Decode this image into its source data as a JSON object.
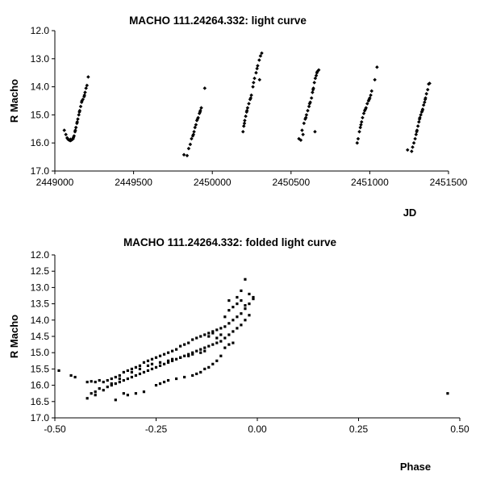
{
  "chart_data": [
    {
      "type": "scatter",
      "title": "MACHO 111.24264.332: light curve",
      "xlabel": "JD",
      "ylabel": "R Macho",
      "xlim": [
        2449000,
        2451500
      ],
      "ylim": [
        12.0,
        17.0
      ],
      "y_inverted": true,
      "grid": false,
      "x_ticks": [
        "2449000",
        "2449500",
        "2450000",
        "2450500",
        "2451000",
        "2451500"
      ],
      "y_ticks": [
        "12.0",
        "13.0",
        "14.0",
        "15.0",
        "16.0",
        "17.0"
      ],
      "marker_color": "#000000",
      "points": [
        [
          2449060,
          15.55
        ],
        [
          2449070,
          15.7
        ],
        [
          2449078,
          15.82
        ],
        [
          2449085,
          15.88
        ],
        [
          2449092,
          15.9
        ],
        [
          2449098,
          15.92
        ],
        [
          2449104,
          15.9
        ],
        [
          2449110,
          15.88
        ],
        [
          2449116,
          15.85
        ],
        [
          2449122,
          15.75
        ],
        [
          2449128,
          15.6
        ],
        [
          2449134,
          15.45
        ],
        [
          2449140,
          15.3
        ],
        [
          2449146,
          15.15
        ],
        [
          2449152,
          15.0
        ],
        [
          2449158,
          14.85
        ],
        [
          2449164,
          14.7
        ],
        [
          2449170,
          14.55
        ],
        [
          2449178,
          14.45
        ],
        [
          2449186,
          14.35
        ],
        [
          2449192,
          14.2
        ],
        [
          2449198,
          14.05
        ],
        [
          2449204,
          13.95
        ],
        [
          2449212,
          13.65
        ],
        [
          2449082,
          15.85
        ],
        [
          2449100,
          15.87
        ],
        [
          2449118,
          15.8
        ],
        [
          2449130,
          15.55
        ],
        [
          2449142,
          15.25
        ],
        [
          2449156,
          14.9
        ],
        [
          2449172,
          14.5
        ],
        [
          2449188,
          14.3
        ],
        [
          2449820,
          16.42
        ],
        [
          2449840,
          16.45
        ],
        [
          2449850,
          16.2
        ],
        [
          2449860,
          16.05
        ],
        [
          2449868,
          15.85
        ],
        [
          2449876,
          15.75
        ],
        [
          2449884,
          15.6
        ],
        [
          2449890,
          15.45
        ],
        [
          2449896,
          15.35
        ],
        [
          2449902,
          15.2
        ],
        [
          2449910,
          15.1
        ],
        [
          2449918,
          14.95
        ],
        [
          2449924,
          14.85
        ],
        [
          2449930,
          14.75
        ],
        [
          2449952,
          14.05
        ],
        [
          2449880,
          15.7
        ],
        [
          2449906,
          15.15
        ],
        [
          2449922,
          14.9
        ],
        [
          2450195,
          15.6
        ],
        [
          2450200,
          15.4
        ],
        [
          2450206,
          15.2
        ],
        [
          2450212,
          15.05
        ],
        [
          2450218,
          14.9
        ],
        [
          2450224,
          14.75
        ],
        [
          2450232,
          14.6
        ],
        [
          2450240,
          14.45
        ],
        [
          2450248,
          14.3
        ],
        [
          2450258,
          14.0
        ],
        [
          2450268,
          13.7
        ],
        [
          2450278,
          13.5
        ],
        [
          2450288,
          13.25
        ],
        [
          2450298,
          13.05
        ],
        [
          2450306,
          12.9
        ],
        [
          2450314,
          12.8
        ],
        [
          2450300,
          13.75
        ],
        [
          2450204,
          15.3
        ],
        [
          2450220,
          14.85
        ],
        [
          2450244,
          14.4
        ],
        [
          2450262,
          13.85
        ],
        [
          2450284,
          13.35
        ],
        [
          2450550,
          15.85
        ],
        [
          2450562,
          15.9
        ],
        [
          2450570,
          15.55
        ],
        [
          2450576,
          15.7
        ],
        [
          2450582,
          15.3
        ],
        [
          2450590,
          15.15
        ],
        [
          2450598,
          15.0
        ],
        [
          2450606,
          14.85
        ],
        [
          2450614,
          14.7
        ],
        [
          2450622,
          14.55
        ],
        [
          2450630,
          14.4
        ],
        [
          2450636,
          14.2
        ],
        [
          2450642,
          14.05
        ],
        [
          2450648,
          13.85
        ],
        [
          2450654,
          13.7
        ],
        [
          2450660,
          13.6
        ],
        [
          2450668,
          13.45
        ],
        [
          2450676,
          13.4
        ],
        [
          2450652,
          15.6
        ],
        [
          2450594,
          15.1
        ],
        [
          2450618,
          14.6
        ],
        [
          2450640,
          14.1
        ],
        [
          2450664,
          13.5
        ],
        [
          2450920,
          16.0
        ],
        [
          2450926,
          15.85
        ],
        [
          2450934,
          15.6
        ],
        [
          2450940,
          15.45
        ],
        [
          2450948,
          15.25
        ],
        [
          2450954,
          15.1
        ],
        [
          2450962,
          14.95
        ],
        [
          2450968,
          14.85
        ],
        [
          2450976,
          14.75
        ],
        [
          2450984,
          14.6
        ],
        [
          2450992,
          14.5
        ],
        [
          2451000,
          14.4
        ],
        [
          2451006,
          14.3
        ],
        [
          2451012,
          14.15
        ],
        [
          2451032,
          13.75
        ],
        [
          2451046,
          13.3
        ],
        [
          2450944,
          15.35
        ],
        [
          2450972,
          14.8
        ],
        [
          2450996,
          14.45
        ],
        [
          2451240,
          16.25
        ],
        [
          2451266,
          16.3
        ],
        [
          2451272,
          16.15
        ],
        [
          2451280,
          16.0
        ],
        [
          2451288,
          15.85
        ],
        [
          2451294,
          15.7
        ],
        [
          2451300,
          15.55
        ],
        [
          2451306,
          15.4
        ],
        [
          2451312,
          15.25
        ],
        [
          2451318,
          15.1
        ],
        [
          2451324,
          15.0
        ],
        [
          2451330,
          14.9
        ],
        [
          2451336,
          14.8
        ],
        [
          2451342,
          14.65
        ],
        [
          2451348,
          14.55
        ],
        [
          2451354,
          14.4
        ],
        [
          2451360,
          14.25
        ],
        [
          2451368,
          14.1
        ],
        [
          2451374,
          13.9
        ],
        [
          2451380,
          13.88
        ],
        [
          2451298,
          15.6
        ],
        [
          2451316,
          15.15
        ],
        [
          2451334,
          14.85
        ],
        [
          2451352,
          14.45
        ]
      ]
    },
    {
      "type": "scatter",
      "title": "MACHO 111.24264.332: folded light curve",
      "xlabel": "Phase",
      "ylabel": "R Macho",
      "xlim": [
        -0.5,
        0.5
      ],
      "ylim": [
        12.0,
        17.0
      ],
      "y_inverted": true,
      "grid": false,
      "x_ticks": [
        "-0.50",
        "-0.25",
        "0.00",
        "0.25",
        "0.50"
      ],
      "y_ticks": [
        "12.0",
        "12.5",
        "13.0",
        "13.5",
        "14.0",
        "14.5",
        "15.0",
        "15.5",
        "16.0",
        "16.5",
        "17.0"
      ],
      "marker_color": "#000000",
      "points": [
        [
          -0.49,
          15.55
        ],
        [
          -0.46,
          15.7
        ],
        [
          -0.45,
          15.75
        ],
        [
          -0.42,
          16.4
        ],
        [
          -0.4,
          16.3
        ],
        [
          -0.35,
          16.45
        ],
        [
          0.47,
          16.25
        ],
        [
          -0.42,
          15.9
        ],
        [
          -0.41,
          15.88
        ],
        [
          -0.4,
          15.9
        ],
        [
          -0.39,
          15.85
        ],
        [
          -0.38,
          15.9
        ],
        [
          -0.37,
          15.85
        ],
        [
          -0.36,
          15.8
        ],
        [
          -0.35,
          15.75
        ],
        [
          -0.34,
          15.7
        ],
        [
          -0.33,
          15.6
        ],
        [
          -0.32,
          15.55
        ],
        [
          -0.31,
          15.5
        ],
        [
          -0.3,
          15.45
        ],
        [
          -0.29,
          15.4
        ],
        [
          -0.28,
          15.3
        ],
        [
          -0.27,
          15.25
        ],
        [
          -0.26,
          15.2
        ],
        [
          -0.25,
          15.15
        ],
        [
          -0.24,
          15.1
        ],
        [
          -0.23,
          15.05
        ],
        [
          -0.22,
          15.0
        ],
        [
          -0.21,
          14.95
        ],
        [
          -0.2,
          14.9
        ],
        [
          -0.19,
          14.8
        ],
        [
          -0.18,
          14.75
        ],
        [
          -0.17,
          14.7
        ],
        [
          -0.16,
          14.6
        ],
        [
          -0.15,
          14.55
        ],
        [
          -0.14,
          14.5
        ],
        [
          -0.13,
          14.45
        ],
        [
          -0.12,
          14.4
        ],
        [
          -0.11,
          14.35
        ],
        [
          -0.1,
          14.3
        ],
        [
          -0.09,
          14.25
        ],
        [
          -0.08,
          14.2
        ],
        [
          -0.07,
          14.1
        ],
        [
          -0.06,
          14.0
        ],
        [
          -0.05,
          13.9
        ],
        [
          -0.04,
          13.8
        ],
        [
          -0.03,
          13.65
        ],
        [
          -0.02,
          13.5
        ],
        [
          -0.01,
          13.35
        ],
        [
          -0.41,
          16.25
        ],
        [
          -0.4,
          16.2
        ],
        [
          -0.39,
          16.1
        ],
        [
          -0.38,
          16.15
        ],
        [
          -0.37,
          16.05
        ],
        [
          -0.36,
          16.0
        ],
        [
          -0.35,
          15.95
        ],
        [
          -0.34,
          15.9
        ],
        [
          -0.33,
          15.85
        ],
        [
          -0.32,
          15.8
        ],
        [
          -0.31,
          15.75
        ],
        [
          -0.3,
          15.7
        ],
        [
          -0.29,
          15.65
        ],
        [
          -0.28,
          15.6
        ],
        [
          -0.27,
          15.55
        ],
        [
          -0.26,
          15.5
        ],
        [
          -0.25,
          15.45
        ],
        [
          -0.24,
          15.4
        ],
        [
          -0.23,
          15.35
        ],
        [
          -0.22,
          15.3
        ],
        [
          -0.21,
          15.25
        ],
        [
          -0.2,
          15.2
        ],
        [
          -0.19,
          15.15
        ],
        [
          -0.18,
          15.1
        ],
        [
          -0.17,
          15.05
        ],
        [
          -0.16,
          15.0
        ],
        [
          -0.15,
          14.95
        ],
        [
          -0.14,
          14.9
        ],
        [
          -0.13,
          14.85
        ],
        [
          -0.12,
          14.8
        ],
        [
          -0.11,
          14.75
        ],
        [
          -0.1,
          14.7
        ],
        [
          -0.09,
          14.65
        ],
        [
          -0.08,
          14.55
        ],
        [
          -0.07,
          14.45
        ],
        [
          -0.06,
          14.35
        ],
        [
          -0.05,
          14.25
        ],
        [
          -0.04,
          14.15
        ],
        [
          -0.03,
          14.0
        ],
        [
          -0.02,
          13.85
        ],
        [
          -0.33,
          16.25
        ],
        [
          -0.32,
          16.3
        ],
        [
          -0.3,
          16.25
        ],
        [
          -0.28,
          16.2
        ],
        [
          -0.25,
          16.0
        ],
        [
          -0.24,
          15.95
        ],
        [
          -0.23,
          15.9
        ],
        [
          -0.22,
          15.85
        ],
        [
          -0.2,
          15.8
        ],
        [
          -0.18,
          15.75
        ],
        [
          -0.16,
          15.7
        ],
        [
          -0.15,
          15.65
        ],
        [
          -0.14,
          15.6
        ],
        [
          -0.13,
          15.5
        ],
        [
          -0.12,
          15.45
        ],
        [
          -0.11,
          15.35
        ],
        [
          -0.1,
          15.25
        ],
        [
          -0.09,
          15.1
        ],
        [
          -0.08,
          14.85
        ],
        [
          -0.07,
          14.75
        ],
        [
          -0.06,
          14.7
        ],
        [
          -0.36,
          15.95
        ],
        [
          -0.34,
          15.8
        ],
        [
          -0.31,
          15.6
        ],
        [
          -0.29,
          15.5
        ],
        [
          -0.27,
          15.4
        ],
        [
          -0.26,
          15.35
        ],
        [
          -0.24,
          15.3
        ],
        [
          -0.22,
          15.25
        ],
        [
          -0.21,
          15.2
        ],
        [
          -0.19,
          15.15
        ],
        [
          -0.17,
          15.1
        ],
        [
          -0.16,
          15.05
        ],
        [
          -0.14,
          15.0
        ],
        [
          -0.13,
          14.95
        ],
        [
          -0.12,
          14.5
        ],
        [
          -0.11,
          14.4
        ],
        [
          -0.1,
          14.55
        ],
        [
          -0.09,
          14.45
        ],
        [
          -0.08,
          13.9
        ],
        [
          -0.07,
          13.7
        ],
        [
          -0.06,
          13.6
        ],
        [
          -0.05,
          13.3
        ],
        [
          -0.04,
          13.1
        ],
        [
          -0.03,
          13.55
        ],
        [
          -0.02,
          13.2
        ],
        [
          -0.01,
          13.3
        ],
        [
          -0.07,
          13.4
        ],
        [
          -0.05,
          13.5
        ],
        [
          -0.04,
          13.4
        ],
        [
          -0.03,
          12.75
        ]
      ]
    }
  ]
}
